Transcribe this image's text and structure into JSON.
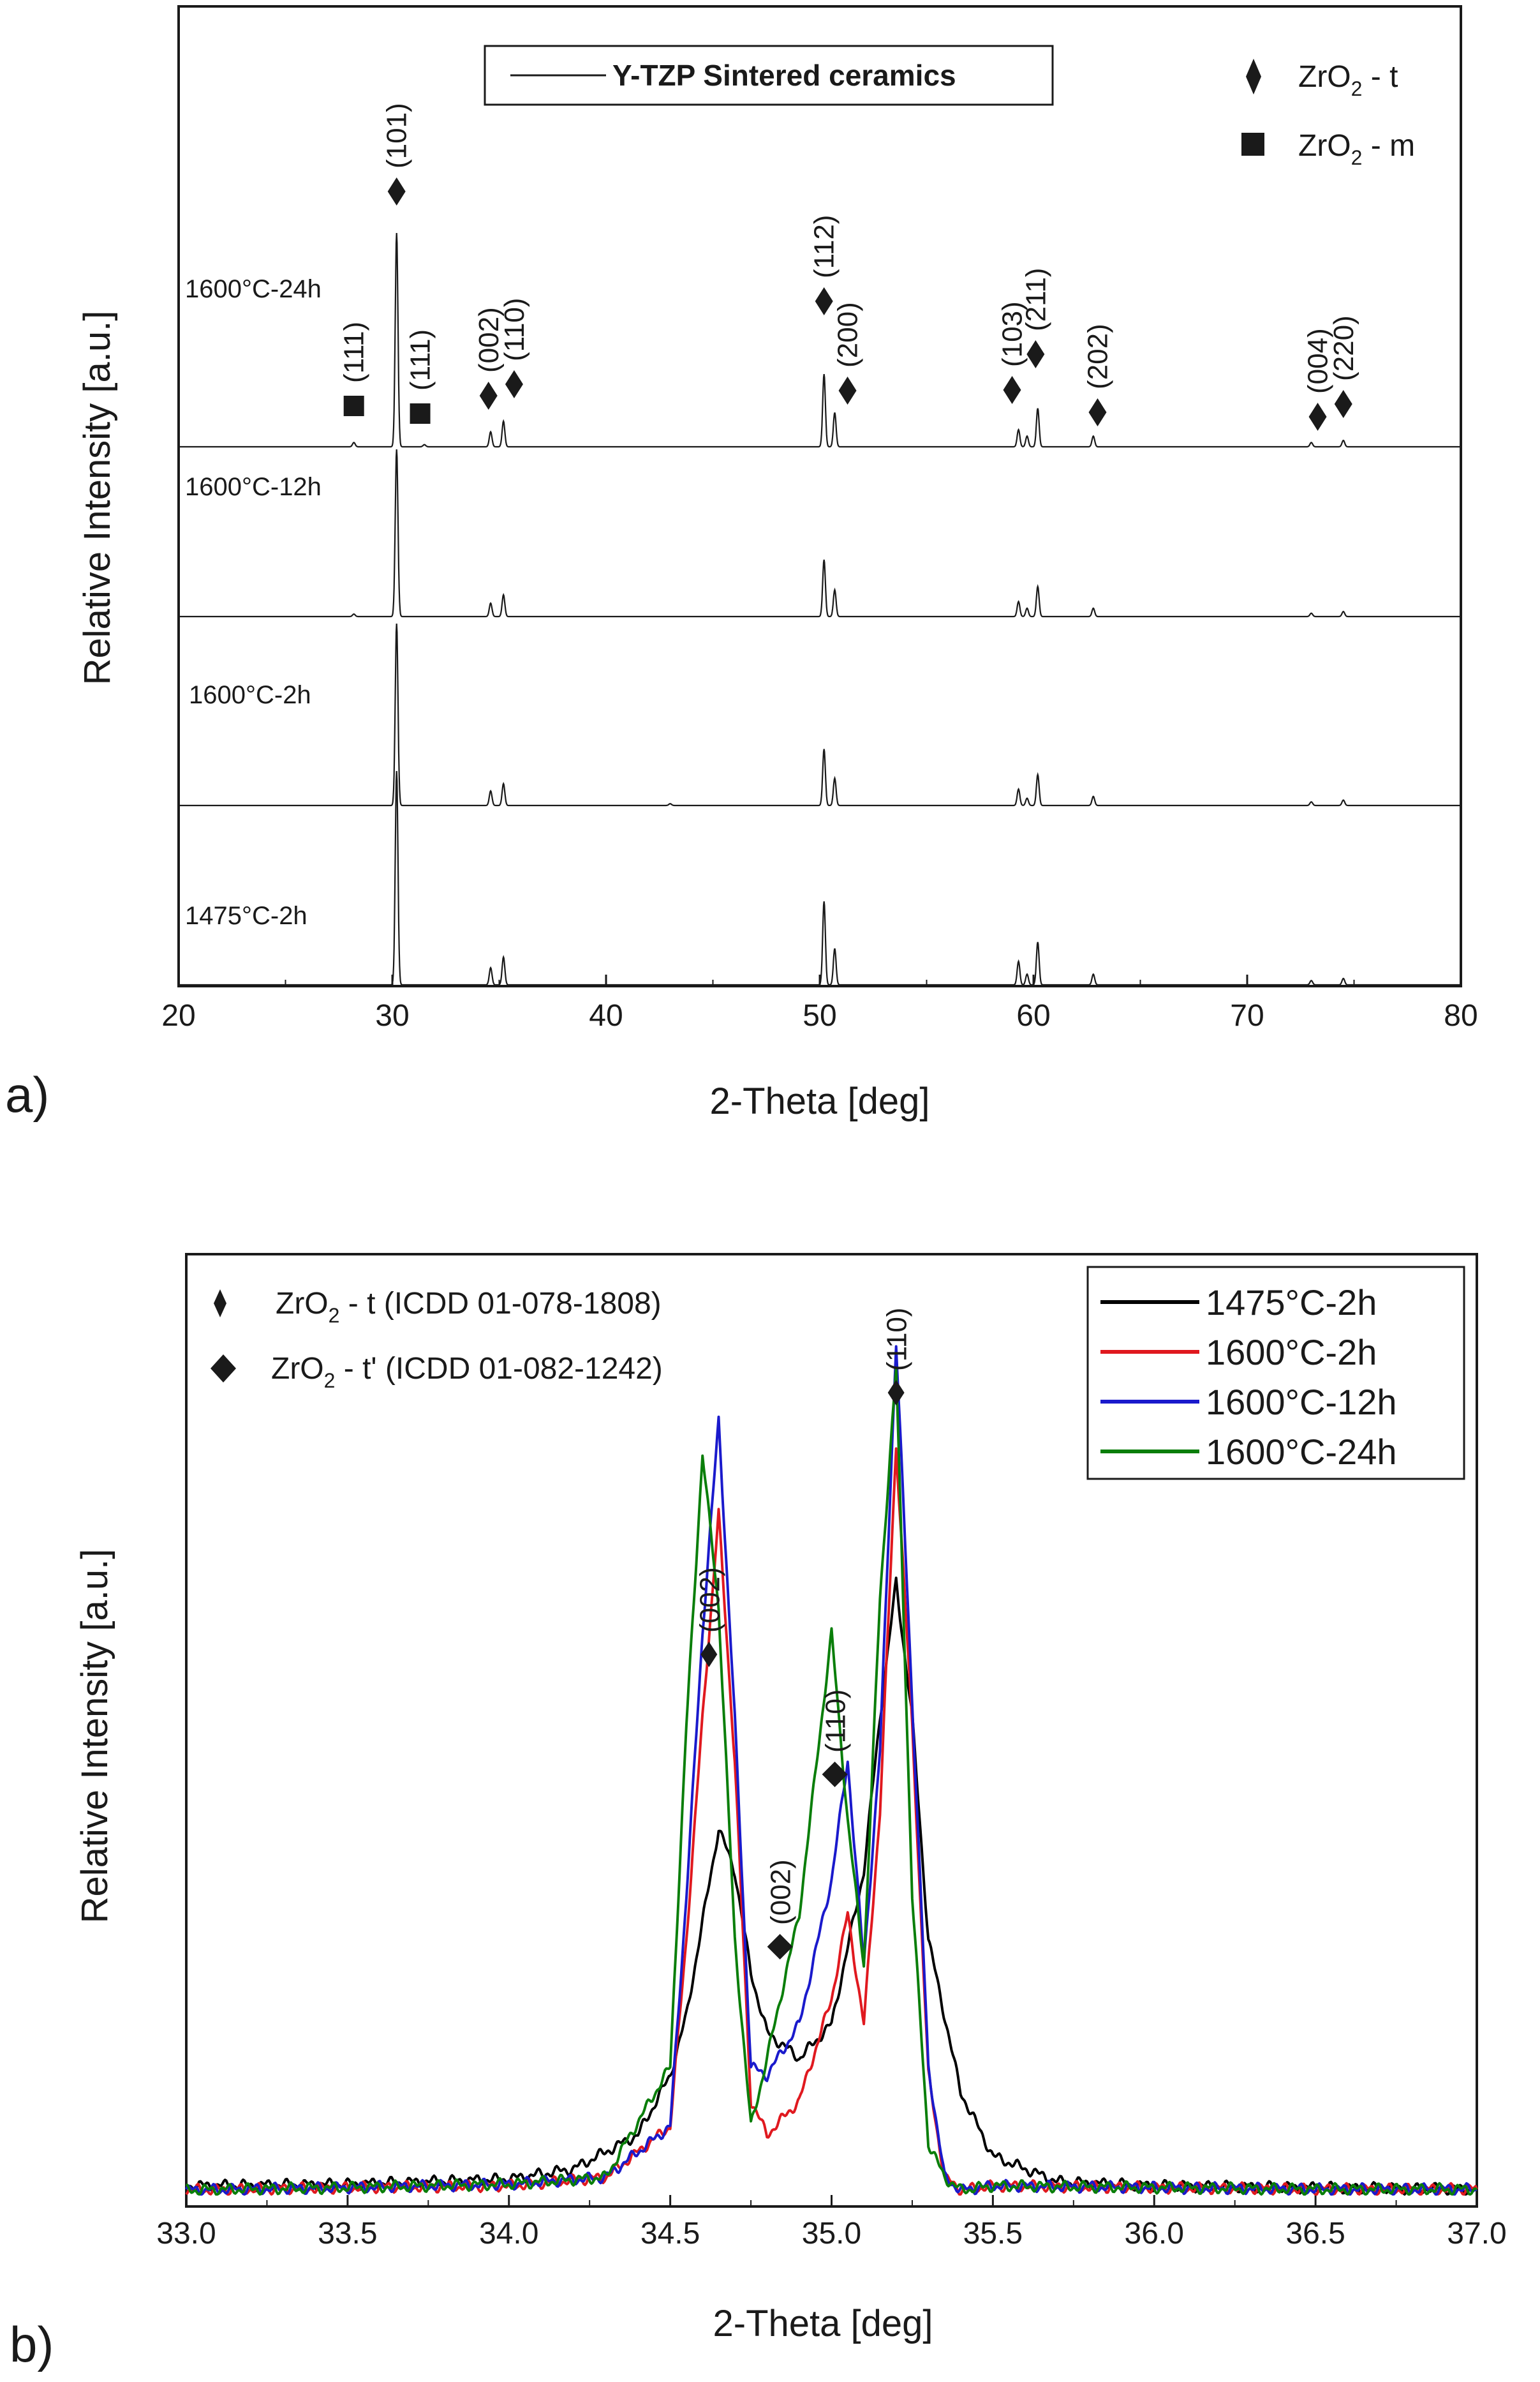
{
  "chart_data": [
    {
      "panel": "a)",
      "type": "line",
      "xlabel": "2-Theta [deg]",
      "ylabel": "Relative Intensity [a.u.]",
      "xlim": [
        20,
        80
      ],
      "xticks": [
        20,
        30,
        40,
        50,
        60,
        70,
        80
      ],
      "legend": {
        "line_label": "Y-TZP Sintered ceramics",
        "position": "top-center"
      },
      "phase_legend": [
        {
          "symbol": "diamond",
          "label": "ZrO",
          "sub": "2",
          "suffix": " - t"
        },
        {
          "symbol": "square",
          "label": "ZrO",
          "sub": "2",
          "suffix": " - m"
        }
      ],
      "series": [
        {
          "name": "1600°C-24h",
          "scale": 0.62,
          "peaks": [
            [
              28.2,
              0.02
            ],
            [
              30.2,
              1.0
            ],
            [
              31.5,
              0.01
            ],
            [
              34.6,
              0.07
            ],
            [
              35.2,
              0.12
            ],
            [
              50.2,
              0.34
            ],
            [
              50.7,
              0.16
            ],
            [
              59.3,
              0.08
            ],
            [
              59.7,
              0.05
            ],
            [
              60.2,
              0.18
            ],
            [
              62.8,
              0.05
            ],
            [
              73.0,
              0.02
            ],
            [
              74.5,
              0.03
            ]
          ]
        },
        {
          "name": "1600°C-12h",
          "scale": 0.49,
          "peaks": [
            [
              28.2,
              0.015
            ],
            [
              30.2,
              1.0
            ],
            [
              34.6,
              0.08
            ],
            [
              35.2,
              0.13
            ],
            [
              50.2,
              0.34
            ],
            [
              50.7,
              0.16
            ],
            [
              59.3,
              0.09
            ],
            [
              59.7,
              0.05
            ],
            [
              60.2,
              0.18
            ],
            [
              62.8,
              0.05
            ],
            [
              73.0,
              0.02
            ],
            [
              74.5,
              0.03
            ]
          ]
        },
        {
          "name": "1600°C-2h",
          "scale": 0.52,
          "peaks": [
            [
              30.2,
              1.0
            ],
            [
              34.6,
              0.08
            ],
            [
              35.2,
              0.12
            ],
            [
              43.0,
              0.01
            ],
            [
              50.2,
              0.31
            ],
            [
              50.7,
              0.15
            ],
            [
              59.3,
              0.09
            ],
            [
              59.7,
              0.04
            ],
            [
              60.2,
              0.17
            ],
            [
              62.8,
              0.05
            ],
            [
              73.0,
              0.02
            ],
            [
              74.5,
              0.03
            ]
          ]
        },
        {
          "name": "1475°C-2h",
          "scale": 0.62,
          "peaks": [
            [
              30.2,
              1.0
            ],
            [
              34.6,
              0.08
            ],
            [
              35.2,
              0.13
            ],
            [
              50.2,
              0.39
            ],
            [
              50.7,
              0.17
            ],
            [
              59.3,
              0.11
            ],
            [
              59.7,
              0.05
            ],
            [
              60.2,
              0.2
            ],
            [
              62.8,
              0.05
            ],
            [
              73.0,
              0.02
            ],
            [
              74.5,
              0.03
            ]
          ]
        }
      ],
      "annotations": [
        {
          "hkl": "(111)",
          "phase": "m",
          "x": 28.2
        },
        {
          "hkl": "(101)",
          "phase": "t",
          "x": 30.2
        },
        {
          "hkl": "(111)",
          "phase": "m",
          "x": 31.3
        },
        {
          "hkl": "(002)",
          "phase": "t",
          "x": 34.5
        },
        {
          "hkl": "(110)",
          "phase": "t",
          "x": 35.7
        },
        {
          "hkl": "(112)",
          "phase": "t",
          "x": 50.2
        },
        {
          "hkl": "(200)",
          "phase": "t",
          "x": 51.3
        },
        {
          "hkl": "(103)",
          "phase": "t",
          "x": 59.0
        },
        {
          "hkl": "(211)",
          "phase": "t",
          "x": 60.1
        },
        {
          "hkl": "(202)",
          "phase": "t",
          "x": 63.0
        },
        {
          "hkl": "(004)",
          "phase": "t",
          "x": 73.3
        },
        {
          "hkl": "(220)",
          "phase": "t",
          "x": 74.5
        }
      ]
    },
    {
      "panel": "b)",
      "type": "line",
      "xlabel": "2-Theta [deg]",
      "ylabel": "Relative Intensity [a.u.]",
      "xlim": [
        33.0,
        37.0
      ],
      "xticks": [
        "33.0",
        "33.5",
        "34.0",
        "34.5",
        "35.0",
        "35.5",
        "36.0",
        "36.5",
        "37.0"
      ],
      "ylim": [
        0,
        1
      ],
      "phase_legend": [
        {
          "symbol": "diamond-small",
          "label": "ZrO",
          "sub": "2",
          "suffix": " - t (ICDD 01-078-1808)"
        },
        {
          "symbol": "diamond",
          "label": "ZrO",
          "sub": "2",
          "suffix": " - t' (ICDD 01-082-1242)"
        }
      ],
      "legend_position": "top-right",
      "series": [
        {
          "name": "1475°C-2h",
          "color": "#000000",
          "x": [
            33.0,
            33.5,
            34.0,
            34.2,
            34.4,
            34.5,
            34.55,
            34.6,
            34.65,
            34.7,
            34.75,
            34.8,
            34.9,
            35.0,
            35.1,
            35.15,
            35.2,
            35.25,
            35.3,
            35.4,
            35.5,
            35.7,
            36.0,
            36.5,
            37.0
          ],
          "y": [
            0.01,
            0.012,
            0.018,
            0.03,
            0.07,
            0.14,
            0.21,
            0.32,
            0.43,
            0.38,
            0.26,
            0.19,
            0.16,
            0.2,
            0.38,
            0.56,
            0.72,
            0.56,
            0.3,
            0.12,
            0.045,
            0.015,
            0.01,
            0.008,
            0.006
          ]
        },
        {
          "name": "1600°C-2h",
          "color": "#e0191f",
          "x": [
            33.0,
            33.5,
            34.0,
            34.3,
            34.5,
            34.55,
            34.6,
            34.65,
            34.7,
            34.75,
            34.8,
            34.9,
            35.0,
            35.05,
            35.1,
            35.15,
            35.2,
            35.25,
            35.3,
            35.35,
            35.4,
            35.5,
            36.0,
            36.5,
            37.0
          ],
          "y": [
            0.005,
            0.008,
            0.01,
            0.02,
            0.08,
            0.3,
            0.56,
            0.8,
            0.51,
            0.11,
            0.07,
            0.11,
            0.23,
            0.33,
            0.2,
            0.45,
            0.88,
            0.55,
            0.14,
            0.02,
            0.005,
            0.01,
            0.008,
            0.006,
            0.006
          ]
        },
        {
          "name": "1600°C-12h",
          "color": "#1a1acc",
          "x": [
            33.0,
            33.5,
            34.0,
            34.3,
            34.5,
            34.55,
            34.6,
            34.65,
            34.7,
            34.75,
            34.8,
            34.9,
            35.0,
            35.05,
            35.1,
            35.15,
            35.2,
            35.25,
            35.3,
            35.35,
            35.4,
            35.5,
            36.0,
            36.5,
            37.0
          ],
          "y": [
            0.005,
            0.008,
            0.012,
            0.02,
            0.08,
            0.35,
            0.66,
            0.91,
            0.56,
            0.15,
            0.14,
            0.2,
            0.37,
            0.51,
            0.27,
            0.52,
            1.0,
            0.58,
            0.15,
            0.02,
            0.005,
            0.01,
            0.008,
            0.006,
            0.006
          ]
        },
        {
          "name": "1600°C-24h",
          "color": "#0a7e0a",
          "x": [
            33.0,
            33.5,
            34.0,
            34.3,
            34.5,
            34.55,
            34.6,
            34.65,
            34.7,
            34.75,
            34.8,
            34.9,
            35.0,
            35.05,
            35.1,
            35.15,
            35.2,
            35.25,
            35.3,
            35.35,
            35.4,
            35.5,
            36.0,
            36.5,
            37.0
          ],
          "y": [
            0.005,
            0.008,
            0.012,
            0.02,
            0.15,
            0.55,
            0.87,
            0.69,
            0.3,
            0.08,
            0.16,
            0.33,
            0.66,
            0.44,
            0.27,
            0.7,
            0.97,
            0.35,
            0.06,
            0.02,
            0.005,
            0.01,
            0.008,
            0.006,
            0.006
          ]
        }
      ],
      "annotations": [
        {
          "hkl": "(002)",
          "phase": "t",
          "x": 34.62
        },
        {
          "hkl": "(002)",
          "phase": "t'",
          "x": 34.84
        },
        {
          "hkl": "(110)",
          "phase": "t'",
          "x": 35.01
        },
        {
          "hkl": "(110)",
          "phase": "t",
          "x": 35.2
        }
      ]
    }
  ]
}
